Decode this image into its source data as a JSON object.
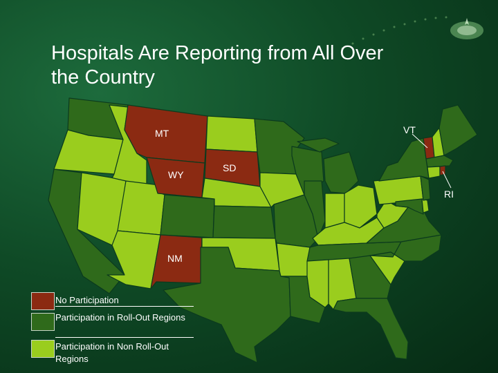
{
  "title": "Hospitals Are Reporting from All Over the Country",
  "colors": {
    "no_participation": "#8b2a12",
    "roll_out": "#2f6a1b",
    "non_roll_out": "#9acd1e",
    "border": "#0b3a1d"
  },
  "state_labels": {
    "MT": "MT",
    "WY": "WY",
    "SD": "SD",
    "NM": "NM",
    "VT": "VT",
    "RI": "RI"
  },
  "legend": [
    {
      "key": "no_participation",
      "label": "No Participation"
    },
    {
      "key": "roll_out",
      "label": "Participation in Roll-Out Regions"
    },
    {
      "key": "non_roll_out",
      "label": "Participation in Non Roll-Out Regions"
    }
  ],
  "states": [
    {
      "code": "WA",
      "category": "roll_out"
    },
    {
      "code": "OR",
      "category": "non_roll_out"
    },
    {
      "code": "CA",
      "category": "roll_out"
    },
    {
      "code": "ID",
      "category": "non_roll_out"
    },
    {
      "code": "NV",
      "category": "non_roll_out"
    },
    {
      "code": "AZ",
      "category": "non_roll_out"
    },
    {
      "code": "UT",
      "category": "non_roll_out"
    },
    {
      "code": "MT",
      "category": "no_participation"
    },
    {
      "code": "WY",
      "category": "no_participation"
    },
    {
      "code": "CO",
      "category": "roll_out"
    },
    {
      "code": "NM",
      "category": "no_participation"
    },
    {
      "code": "ND",
      "category": "non_roll_out"
    },
    {
      "code": "SD",
      "category": "no_participation"
    },
    {
      "code": "NE",
      "category": "non_roll_out"
    },
    {
      "code": "KS",
      "category": "roll_out"
    },
    {
      "code": "OK",
      "category": "non_roll_out"
    },
    {
      "code": "TX",
      "category": "roll_out"
    },
    {
      "code": "MN",
      "category": "roll_out"
    },
    {
      "code": "IA",
      "category": "non_roll_out"
    },
    {
      "code": "MO",
      "category": "roll_out"
    },
    {
      "code": "AR",
      "category": "non_roll_out"
    },
    {
      "code": "LA",
      "category": "roll_out"
    },
    {
      "code": "WI",
      "category": "roll_out"
    },
    {
      "code": "IL",
      "category": "roll_out"
    },
    {
      "code": "MI",
      "category": "roll_out"
    },
    {
      "code": "IN",
      "category": "non_roll_out"
    },
    {
      "code": "OH",
      "category": "non_roll_out"
    },
    {
      "code": "KY",
      "category": "non_roll_out"
    },
    {
      "code": "TN",
      "category": "roll_out"
    },
    {
      "code": "MS",
      "category": "non_roll_out"
    },
    {
      "code": "AL",
      "category": "non_roll_out"
    },
    {
      "code": "GA",
      "category": "roll_out"
    },
    {
      "code": "FL",
      "category": "roll_out"
    },
    {
      "code": "SC",
      "category": "non_roll_out"
    },
    {
      "code": "NC",
      "category": "roll_out"
    },
    {
      "code": "VA",
      "category": "roll_out"
    },
    {
      "code": "WV",
      "category": "non_roll_out"
    },
    {
      "code": "PA",
      "category": "non_roll_out"
    },
    {
      "code": "NY",
      "category": "roll_out"
    },
    {
      "code": "VT",
      "category": "no_participation"
    },
    {
      "code": "NH",
      "category": "non_roll_out"
    },
    {
      "code": "ME",
      "category": "roll_out"
    },
    {
      "code": "MA",
      "category": "roll_out"
    },
    {
      "code": "CT",
      "category": "non_roll_out"
    },
    {
      "code": "RI",
      "category": "no_participation"
    },
    {
      "code": "NJ",
      "category": "roll_out"
    },
    {
      "code": "DE",
      "category": "non_roll_out"
    },
    {
      "code": "MD",
      "category": "roll_out"
    }
  ]
}
